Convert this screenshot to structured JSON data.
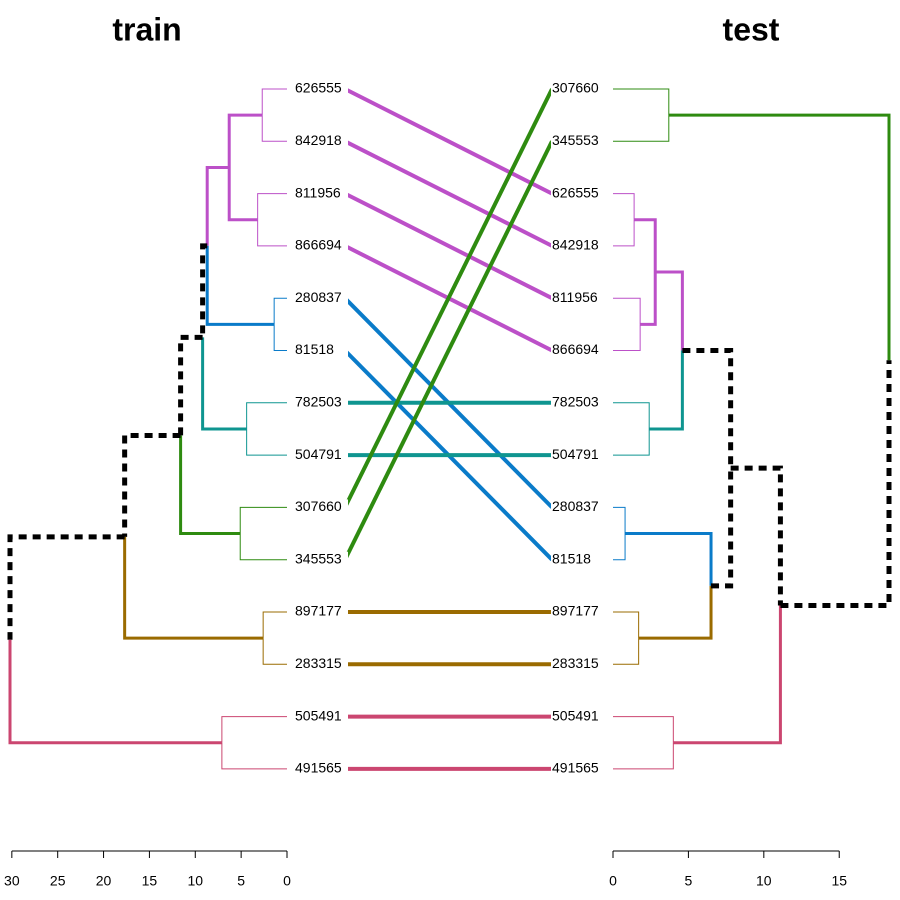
{
  "chart_data": {
    "type": "tanglegram",
    "trees": [
      {
        "title": "train",
        "labels": [
          "626555",
          "842918",
          "811956",
          "866694",
          "280837",
          "81518",
          "782503",
          "504791",
          "307660",
          "345553",
          "897177",
          "283315",
          "505491",
          "491565"
        ],
        "leaf_colors": [
          "#BC50C8",
          "#BC50C8",
          "#BC50C8",
          "#BC50C8",
          "#0A7BC9",
          "#0A7BC9",
          "#0F9590",
          "#0F9590",
          "#2E8B10",
          "#2E8B10",
          "#9A6B00",
          "#9A6B00",
          "#CB4670",
          "#CB4670"
        ],
        "merges": [
          {
            "children": [
              -1,
              -2
            ],
            "height": 2.7,
            "color": "#BC50C8",
            "dashed": false
          },
          {
            "children": [
              -3,
              -4
            ],
            "height": 3.2,
            "color": "#BC50C8",
            "dashed": false
          },
          {
            "children": [
              1,
              2
            ],
            "height": 6.3,
            "color": "#BC50C8",
            "dashed": false
          },
          {
            "children": [
              -5,
              -6
            ],
            "height": 1.4,
            "color": "#0A7BC9",
            "dashed": false
          },
          {
            "children": [
              3,
              4
            ],
            "height": 8.7,
            "color": "#000000",
            "dashed": true
          },
          {
            "children": [
              -7,
              -8
            ],
            "height": 4.4,
            "color": "#0F9590",
            "dashed": false
          },
          {
            "children": [
              5,
              6
            ],
            "height": 9.2,
            "color": "#000000",
            "dashed": true
          },
          {
            "children": [
              -9,
              -10
            ],
            "height": 5.1,
            "color": "#2E8B10",
            "dashed": false
          },
          {
            "children": [
              7,
              8
            ],
            "height": 11.6,
            "color": "#000000",
            "dashed": true
          },
          {
            "children": [
              -11,
              -12
            ],
            "height": 2.6,
            "color": "#9A6B00",
            "dashed": false
          },
          {
            "children": [
              9,
              10
            ],
            "height": 17.7,
            "color": "#000000",
            "dashed": true
          },
          {
            "children": [
              -13,
              -14
            ],
            "height": 7.1,
            "color": "#CB4670",
            "dashed": false
          },
          {
            "children": [
              11,
              12
            ],
            "height": 30.2
          }
        ],
        "xlim": [
          0,
          30.2
        ],
        "xticks": [
          0,
          5,
          10,
          15,
          20,
          25,
          30
        ]
      },
      {
        "title": "test",
        "labels": [
          "307660",
          "345553",
          "626555",
          "842918",
          "811956",
          "866694",
          "782503",
          "504791",
          "280837",
          "81518",
          "897177",
          "283315",
          "505491",
          "491565"
        ],
        "leaf_colors": [
          "#2E8B10",
          "#2E8B10",
          "#BC50C8",
          "#BC50C8",
          "#BC50C8",
          "#BC50C8",
          "#0F9590",
          "#0F9590",
          "#0A7BC9",
          "#0A7BC9",
          "#9A6B00",
          "#9A6B00",
          "#CB4670",
          "#CB4670"
        ],
        "merges": [
          {
            "children": [
              -1,
              -2
            ],
            "height": 3.7,
            "color": "#2E8B10",
            "dashed": false
          },
          {
            "children": [
              -3,
              -4
            ],
            "height": 1.4,
            "color": "#BC50C8",
            "dashed": false
          },
          {
            "children": [
              -5,
              -6
            ],
            "height": 1.8,
            "color": "#BC50C8",
            "dashed": false
          },
          {
            "children": [
              2,
              3
            ],
            "height": 2.8,
            "color": "#BC50C8",
            "dashed": false
          },
          {
            "children": [
              -7,
              -8
            ],
            "height": 2.4,
            "color": "#0F9590",
            "dashed": false
          },
          {
            "children": [
              4,
              5
            ],
            "height": 4.6,
            "color": "#000000",
            "dashed": true
          },
          {
            "children": [
              -9,
              -10
            ],
            "height": 0.8,
            "color": "#0A7BC9",
            "dashed": false
          },
          {
            "children": [
              -11,
              -12
            ],
            "height": 1.7,
            "color": "#9A6B00",
            "dashed": false
          },
          {
            "children": [
              7,
              8
            ],
            "height": 6.5,
            "color": "#000000",
            "dashed": true
          },
          {
            "children": [
              6,
              9
            ],
            "height": 7.8,
            "color": "#000000",
            "dashed": true
          },
          {
            "children": [
              -13,
              -14
            ],
            "height": 4.0,
            "color": "#CB4670",
            "dashed": false
          },
          {
            "children": [
              10,
              11
            ],
            "height": 11.1,
            "color": "#000000",
            "dashed": true
          },
          {
            "children": [
              1,
              12
            ],
            "height": 18.3
          }
        ],
        "xlim": [
          0,
          18.3
        ],
        "xticks": [
          0,
          5,
          10,
          15
        ]
      }
    ]
  }
}
